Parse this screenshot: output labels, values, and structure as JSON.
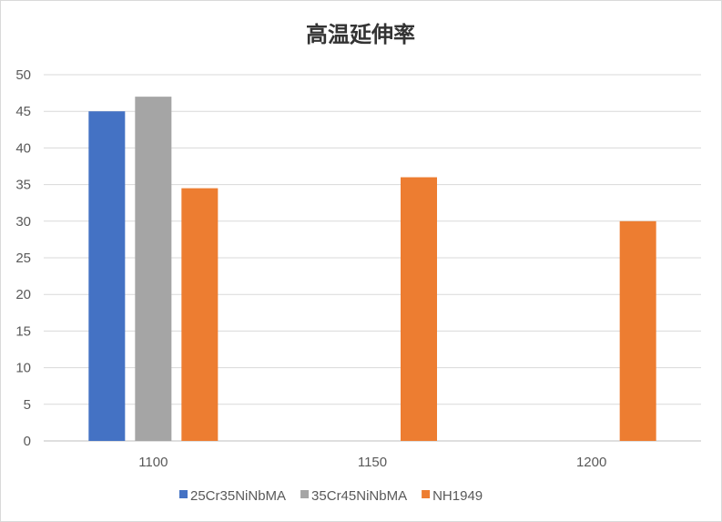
{
  "chart_data": {
    "type": "bar",
    "title": "高温延伸率",
    "xlabel": "",
    "ylabel": "",
    "categories": [
      "1100",
      "1150",
      "1200"
    ],
    "series": [
      {
        "name": "25Cr35NiNbMA",
        "color": "#4472C4",
        "values": [
          45,
          null,
          null
        ]
      },
      {
        "name": "35Cr45NiNbMA",
        "color": "#A5A5A5",
        "values": [
          47,
          null,
          null
        ]
      },
      {
        "name": "NH1949",
        "color": "#ED7D31",
        "values": [
          34.5,
          36,
          30
        ]
      }
    ],
    "ylim": [
      0,
      50
    ],
    "yticks": [
      0,
      5,
      10,
      15,
      20,
      25,
      30,
      35,
      40,
      45,
      50
    ],
    "grid": true,
    "legend": "bottom"
  }
}
